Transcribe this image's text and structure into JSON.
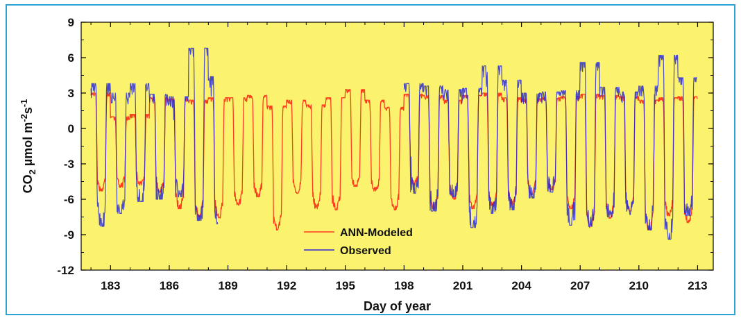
{
  "chart_data": {
    "type": "line",
    "title": "",
    "xlabel": "Day of year",
    "ylabel": {
      "base": "CO",
      "sub": "2",
      "unit": " µmol m",
      "exp1": "-2",
      "s": "s",
      "exp2": "-1"
    },
    "xlim": [
      181.5,
      213.8
    ],
    "ylim": [
      -12,
      9
    ],
    "xticks": [
      "183",
      "186",
      "189",
      "192",
      "195",
      "198",
      "201",
      "204",
      "207",
      "210",
      "213"
    ],
    "yticks": [
      "9",
      "6",
      "3",
      "0",
      "-3",
      "-6",
      "-9",
      "-12"
    ],
    "plot_background": "#fbf36e",
    "grid": false,
    "legend_position": "bottom-center",
    "series": [
      {
        "name": "ANN-Modeled",
        "color": "#ff3b1f",
        "daily": [
          {
            "day": 182,
            "day_max": 3.0,
            "night_min": -5.3,
            "span": [
              182.0,
              183.0
            ]
          },
          {
            "day": 183,
            "day_max": 1.0,
            "night_min": -5.0
          },
          {
            "day": 184,
            "day_max": 1.2,
            "night_min": -4.8
          },
          {
            "day": 185,
            "day_max": 2.6,
            "night_min": -5.4
          },
          {
            "day": 186,
            "day_max": 2.5,
            "night_min": -6.8
          },
          {
            "day": 187,
            "day_max": 2.4,
            "night_min": -7.5
          },
          {
            "day": 188,
            "day_max": 2.6,
            "night_min": -7.6
          },
          {
            "day": 189,
            "day_max": 2.6,
            "night_min": -6.5
          },
          {
            "day": 190,
            "day_max": 2.8,
            "night_min": -5.8
          },
          {
            "day": 191,
            "day_max": 1.9,
            "night_min": -8.6
          },
          {
            "day": 192,
            "day_max": 2.4,
            "night_min": -5.5
          },
          {
            "day": 193,
            "day_max": 2.0,
            "night_min": -6.8
          },
          {
            "day": 194,
            "day_max": 2.6,
            "night_min": -6.9
          },
          {
            "day": 195,
            "day_max": 3.3,
            "night_min": -4.9
          },
          {
            "day": 196,
            "day_max": 2.4,
            "night_min": -5.3
          },
          {
            "day": 197,
            "day_max": 1.8,
            "night_min": -6.9
          },
          {
            "day": 198,
            "day_max": 2.9,
            "night_min": -4.8
          },
          {
            "day": 199,
            "day_max": 2.8,
            "night_min": -6.8
          },
          {
            "day": 200,
            "day_max": 2.4,
            "night_min": -6.0
          },
          {
            "day": 201,
            "day_max": 2.8,
            "night_min": -6.8
          },
          {
            "day": 202,
            "day_max": 3.0,
            "night_min": -6.6
          },
          {
            "day": 203,
            "day_max": 2.6,
            "night_min": -6.5
          },
          {
            "day": 204,
            "day_max": 2.5,
            "night_min": -5.6
          },
          {
            "day": 205,
            "day_max": 2.6,
            "night_min": -5.2
          },
          {
            "day": 206,
            "day_max": 2.7,
            "night_min": -6.8
          },
          {
            "day": 207,
            "day_max": 2.9,
            "night_min": -8.4
          },
          {
            "day": 208,
            "day_max": 2.8,
            "night_min": -7.6
          },
          {
            "day": 209,
            "day_max": 2.7,
            "night_min": -7.0
          },
          {
            "day": 210,
            "day_max": 2.4,
            "night_min": -8.6
          },
          {
            "day": 211,
            "day_max": 2.6,
            "night_min": -7.4
          },
          {
            "day": 212,
            "day_max": 2.7,
            "night_min": -8.0,
            "span": [
              212.0,
              213.0
            ]
          }
        ]
      },
      {
        "name": "Observed",
        "color": "#2a2ad6",
        "gaps": [
          [
            188.5,
            197.5
          ]
        ],
        "daily": [
          {
            "day": 182,
            "day_max": 3.8,
            "night_min": -8.3
          },
          {
            "day": 183,
            "day_max": 3.0,
            "night_min": -7.2
          },
          {
            "day": 184,
            "day_max": 3.8,
            "night_min": -6.2
          },
          {
            "day": 185,
            "day_max": 2.9,
            "night_min": -6.0
          },
          {
            "day": 186,
            "day_max": 2.7,
            "night_min": -5.8
          },
          {
            "day": 187,
            "day_max": 6.8,
            "night_min": -7.8
          },
          {
            "day": 188,
            "day_max": 4.4,
            "night_min": -8.1
          },
          {
            "day": 198,
            "day_max": 3.8,
            "night_min": -5.5
          },
          {
            "day": 199,
            "day_max": 3.6,
            "night_min": -7.0
          },
          {
            "day": 200,
            "day_max": 3.3,
            "night_min": -5.8
          },
          {
            "day": 201,
            "day_max": 3.4,
            "night_min": -8.4
          },
          {
            "day": 202,
            "day_max": 5.3,
            "night_min": -7.2
          },
          {
            "day": 203,
            "day_max": 4.1,
            "night_min": -6.9
          },
          {
            "day": 204,
            "day_max": 3.0,
            "night_min": -5.9
          },
          {
            "day": 205,
            "day_max": 3.1,
            "night_min": -5.4
          },
          {
            "day": 206,
            "day_max": 3.2,
            "night_min": -8.2
          },
          {
            "day": 207,
            "day_max": 5.6,
            "night_min": -8.3
          },
          {
            "day": 208,
            "day_max": 3.5,
            "night_min": -7.5
          },
          {
            "day": 209,
            "day_max": 3.1,
            "night_min": -7.3
          },
          {
            "day": 210,
            "day_max": 3.6,
            "night_min": -8.6
          },
          {
            "day": 211,
            "day_max": 6.2,
            "night_min": -9.4
          },
          {
            "day": 212,
            "day_max": 4.3,
            "night_min": -7.4
          }
        ]
      }
    ]
  }
}
